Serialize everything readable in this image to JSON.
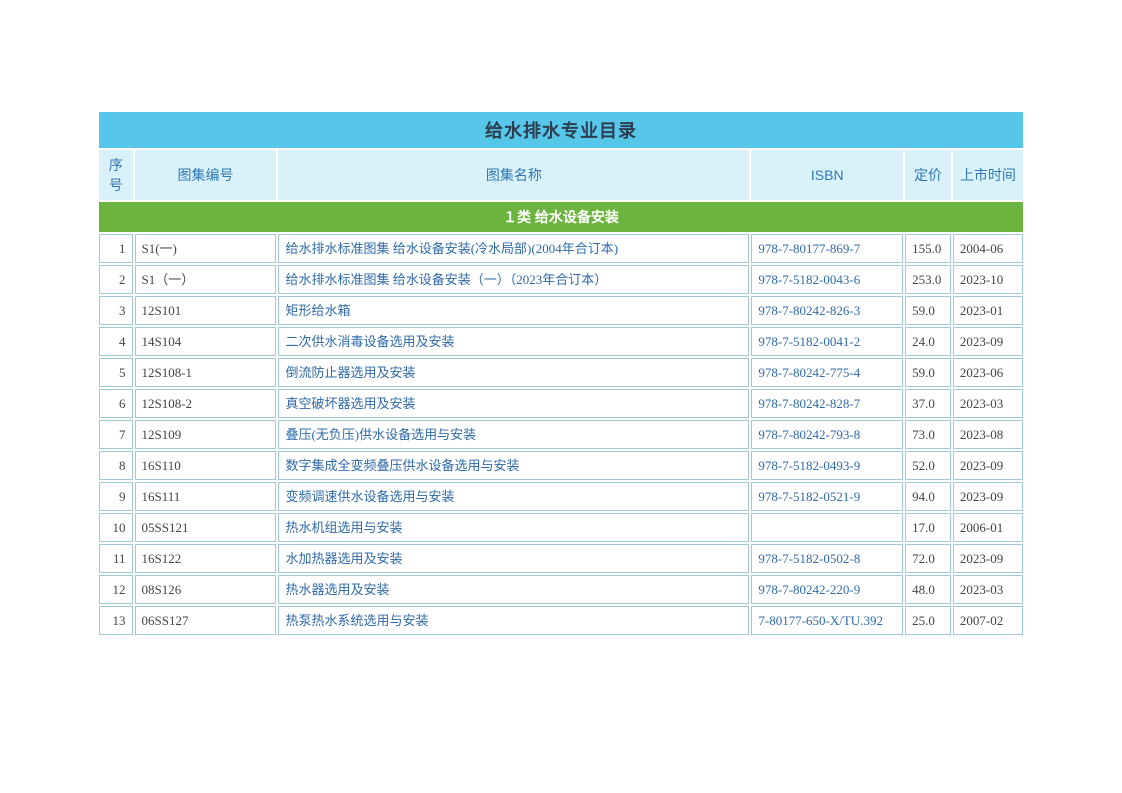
{
  "title": "给水排水专业目录",
  "columns": {
    "seq": "序号",
    "code": "图集编号",
    "name": "图集名称",
    "isbn": "ISBN",
    "price": "定价",
    "date": "上市时间"
  },
  "category": "１类 给水设备安装",
  "rows": [
    {
      "seq": "1",
      "code": "S1(一)",
      "name": "给水排水标准图集 给水设备安装(冷水局部)(2004年合订本)",
      "isbn": "978-7-80177-869-7",
      "price": "155.0",
      "date": "2004-06"
    },
    {
      "seq": "2",
      "code": "S1（一）",
      "name": "给水排水标准图集 给水设备安装（一）（2023年合订本）",
      "isbn": "978-7-5182-0043-6",
      "price": "253.0",
      "date": "2023-10"
    },
    {
      "seq": "3",
      "code": "12S101",
      "name": "矩形给水箱",
      "isbn": "978-7-80242-826-3",
      "price": "59.0",
      "date": "2023-01"
    },
    {
      "seq": "4",
      "code": "14S104",
      "name": "二次供水消毒设备选用及安装",
      "isbn": "978-7-5182-0041-2",
      "price": "24.0",
      "date": "2023-09"
    },
    {
      "seq": "5",
      "code": "12S108-1",
      "name": "倒流防止器选用及安装",
      "isbn": "978-7-80242-775-4",
      "price": "59.0",
      "date": "2023-06"
    },
    {
      "seq": "6",
      "code": "12S108-2",
      "name": "真空破坏器选用及安装",
      "isbn": "978-7-80242-828-7",
      "price": "37.0",
      "date": "2023-03"
    },
    {
      "seq": "7",
      "code": "12S109",
      "name": "叠压(无负压)供水设备选用与安装",
      "isbn": "978-7-80242-793-8",
      "price": "73.0",
      "date": "2023-08"
    },
    {
      "seq": "8",
      "code": "16S110",
      "name": "数字集成全变频叠压供水设备选用与安装",
      "isbn": "978-7-5182-0493-9",
      "price": "52.0",
      "date": "2023-09"
    },
    {
      "seq": "9",
      "code": "16S111",
      "name": "变频调速供水设备选用与安装",
      "isbn": "978-7-5182-0521-9",
      "price": "94.0",
      "date": "2023-09"
    },
    {
      "seq": "10",
      "code": "05SS121",
      "name": "热水机组选用与安装",
      "isbn": "",
      "price": "17.0",
      "date": "2006-01"
    },
    {
      "seq": "11",
      "code": "16S122",
      "name": "水加热器选用及安装",
      "isbn": "978-7-5182-0502-8",
      "price": "72.0",
      "date": "2023-09"
    },
    {
      "seq": "12",
      "code": "08S126",
      "name": "热水器选用及安装",
      "isbn": "978-7-80242-220-9",
      "price": "48.0",
      "date": "2023-03"
    },
    {
      "seq": "13",
      "code": "06SS127",
      "name": "热泵热水系统选用与安装",
      "isbn": "7-80177-650-X/TU.392",
      "price": "25.0",
      "date": "2007-02"
    }
  ],
  "style": {
    "title_bg": "#57c7e9",
    "header_bg": "#d9f2f9",
    "header_fg": "#3178b2",
    "category_bg": "#6cb33f",
    "category_fg": "#ffffff",
    "border_color": "#9ec9d6",
    "link_fg": "#2f6aa8",
    "text_fg": "#454545",
    "title_fontsize": 18,
    "header_fontsize": 14,
    "cell_fontsize": 13
  }
}
